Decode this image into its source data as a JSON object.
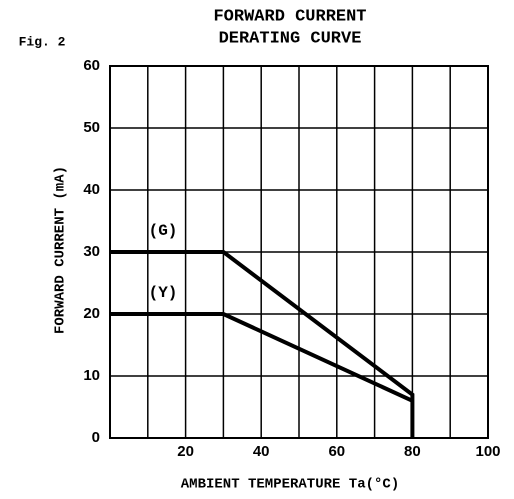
{
  "chart_data": {
    "type": "line",
    "figure_label": "Fig. 2",
    "title": [
      "FORWARD CURRENT",
      "DERATING CURVE"
    ],
    "x_label": "AMBIENT TEMPERATURE Ta(°C)",
    "y_label": "FORWARD CURRENT (mA)",
    "xlim": [
      0,
      100
    ],
    "xticks": [
      20,
      40,
      60,
      80,
      100
    ],
    "xminor": [
      0,
      10,
      30,
      50,
      70,
      90
    ],
    "ylim": [
      0,
      60
    ],
    "yticks": [
      0,
      10,
      20,
      30,
      40,
      50,
      60
    ],
    "grid": true,
    "series": [
      {
        "name": "(G)",
        "color": "#000000",
        "x": [
          0,
          30,
          80,
          80
        ],
        "values": [
          30,
          30,
          7,
          0
        ]
      },
      {
        "name": "(Y)",
        "color": "#000000",
        "x": [
          0,
          30,
          80
        ],
        "values": [
          20,
          20,
          6
        ]
      }
    ]
  }
}
